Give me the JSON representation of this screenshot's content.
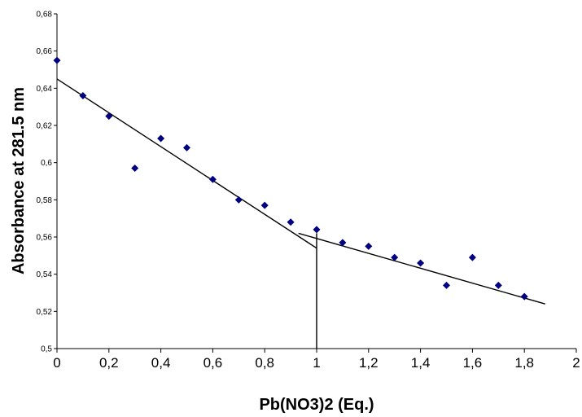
{
  "chart_data": {
    "type": "scatter",
    "title": "",
    "xlabel": "Pb(NO3)2 (Eq.)",
    "ylabel": "Absorbance at 281.5 nm",
    "xlim": [
      0,
      2
    ],
    "ylim": [
      0.5,
      0.68
    ],
    "grid": false,
    "legend": "none",
    "x_ticks": [
      "0",
      "0,2",
      "0,4",
      "0,6",
      "0,8",
      "1",
      "1,2",
      "1,4",
      "1,6",
      "1,8",
      "2"
    ],
    "y_ticks": [
      "0,5",
      "0,52",
      "0,54",
      "0,56",
      "0,58",
      "0,6",
      "0,62",
      "0,64",
      "0,66",
      "0,68"
    ],
    "marker": "diamond",
    "marker_color": "#000080",
    "series": [
      {
        "x": [
          0.0,
          0.1,
          0.2,
          0.3,
          0.4,
          0.5,
          0.6,
          0.7,
          0.8,
          0.9,
          1.0,
          1.1,
          1.2,
          1.3,
          1.4,
          1.5,
          1.6,
          1.7,
          1.8
        ],
        "y": [
          0.655,
          0.636,
          0.625,
          0.597,
          0.613,
          0.608,
          0.591,
          0.58,
          0.577,
          0.568,
          0.564,
          0.557,
          0.555,
          0.549,
          0.546,
          0.534,
          0.549,
          0.534,
          0.528
        ]
      }
    ],
    "fit_lines": [
      {
        "x": [
          0.0,
          1.0
        ],
        "y": [
          0.645,
          0.554
        ]
      },
      {
        "x": [
          0.93,
          1.88
        ],
        "y": [
          0.562,
          0.524
        ]
      }
    ],
    "vertical_line": {
      "x": 1.0,
      "y": [
        0.5,
        0.562
      ]
    }
  }
}
